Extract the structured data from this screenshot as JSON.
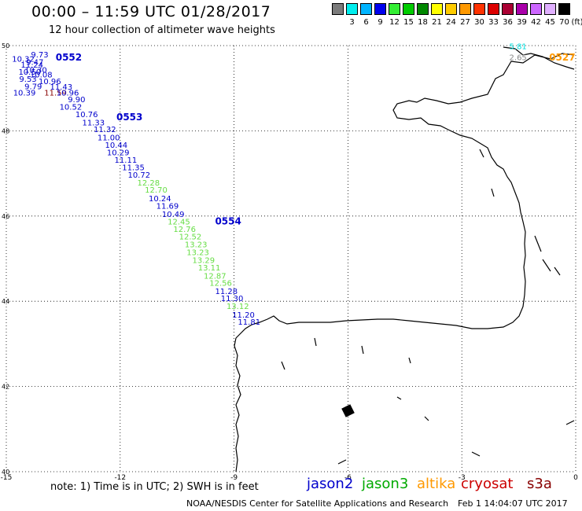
{
  "header": {
    "title": "00:00 – 11:59 UTC 01/28/2017",
    "subtitle": "12 hour collection of altimeter wave heights"
  },
  "color_scale": {
    "colors": [
      "#7b7b7b",
      "#00eeee",
      "#00b4ff",
      "#0000ee",
      "#33ee33",
      "#00cc00",
      "#008800",
      "#ffff00",
      "#ffcc00",
      "#ff9900",
      "#ff3300",
      "#dd0000",
      "#aa0033",
      "#aa00aa",
      "#cc66ff",
      "#e0b0ff",
      "#000000"
    ],
    "labels": [
      "",
      "3",
      "6",
      "9",
      "12",
      "15",
      "18",
      "21",
      "24",
      "27",
      "30",
      "33",
      "36",
      "39",
      "42",
      "45",
      "70"
    ],
    "unit": "(ft)"
  },
  "axes": {
    "lon_ticks": [
      -15,
      -12,
      -9,
      -6,
      -3,
      0
    ],
    "lon_labels": [
      "-15",
      "-12",
      "-9",
      "-6",
      "-3",
      "0"
    ],
    "lat_ticks": [
      50,
      48,
      46,
      44,
      42,
      40
    ],
    "lat_labels": [
      "50",
      "48",
      "46",
      "44",
      "42",
      "40"
    ],
    "lon_range": [
      -15,
      0
    ],
    "lat_range": [
      40,
      50
    ],
    "grid": true
  },
  "satellite_colors": {
    "jason2": "#0000cc",
    "jason3": "#00aa00",
    "altika": "#ff9900",
    "cryosat": "#cc0000",
    "s3a": "#880000",
    "lightgreen": "#66dd44",
    "cyan": "#00dddd",
    "gray": "#888888"
  },
  "pass_labels": [
    {
      "text": "0552",
      "lon": -13.7,
      "lat": 49.65,
      "sat": "jason2"
    },
    {
      "text": "0553",
      "lon": -12.1,
      "lat": 48.25,
      "sat": "jason2"
    },
    {
      "text": "0554",
      "lon": -9.5,
      "lat": 45.8,
      "sat": "jason2"
    },
    {
      "text": "0527",
      "lon": -0.7,
      "lat": 49.65,
      "sat": "altika"
    }
  ],
  "observations": [
    {
      "text": "9.73",
      "lon": -14.35,
      "lat": 49.72,
      "sat": "jason2"
    },
    {
      "text": "10.32",
      "lon": -14.85,
      "lat": 49.62,
      "sat": "jason2"
    },
    {
      "text": "9.47",
      "lon": -14.48,
      "lat": 49.55,
      "sat": "jason2"
    },
    {
      "text": "11.24",
      "lon": -14.62,
      "lat": 49.48,
      "sat": "jason2"
    },
    {
      "text": "10.30",
      "lon": -14.52,
      "lat": 49.36,
      "sat": "jason2"
    },
    {
      "text": "10.50",
      "lon": -14.68,
      "lat": 49.32,
      "sat": "jason2"
    },
    {
      "text": "10.08",
      "lon": -14.38,
      "lat": 49.25,
      "sat": "jason2"
    },
    {
      "text": "9.53",
      "lon": -14.66,
      "lat": 49.15,
      "sat": "jason2"
    },
    {
      "text": "10.96",
      "lon": -14.15,
      "lat": 49.1,
      "sat": "jason2"
    },
    {
      "text": "9.79",
      "lon": -14.52,
      "lat": 48.98,
      "sat": "jason2"
    },
    {
      "text": "11.43",
      "lon": -13.85,
      "lat": 48.97,
      "sat": "jason2"
    },
    {
      "text": "10.39",
      "lon": -14.82,
      "lat": 48.83,
      "sat": "jason2"
    },
    {
      "text": "11.59",
      "lon": -14.0,
      "lat": 48.83,
      "sat": "s3a"
    },
    {
      "text": "10.96",
      "lon": -13.68,
      "lat": 48.83,
      "sat": "jason2"
    },
    {
      "text": "9.90",
      "lon": -13.38,
      "lat": 48.67,
      "sat": "jason2"
    },
    {
      "text": "10.52",
      "lon": -13.6,
      "lat": 48.5,
      "sat": "jason2"
    },
    {
      "text": "10.76",
      "lon": -13.18,
      "lat": 48.32,
      "sat": "jason2"
    },
    {
      "text": "11.33",
      "lon": -13.0,
      "lat": 48.13,
      "sat": "jason2"
    },
    {
      "text": "11.32",
      "lon": -12.7,
      "lat": 47.97,
      "sat": "jason2"
    },
    {
      "text": "11.00",
      "lon": -12.6,
      "lat": 47.78,
      "sat": "jason2"
    },
    {
      "text": "10.44",
      "lon": -12.4,
      "lat": 47.6,
      "sat": "jason2"
    },
    {
      "text": "10.29",
      "lon": -12.35,
      "lat": 47.43,
      "sat": "jason2"
    },
    {
      "text": "11.11",
      "lon": -12.15,
      "lat": 47.25,
      "sat": "jason2"
    },
    {
      "text": "11.35",
      "lon": -11.95,
      "lat": 47.08,
      "sat": "jason2"
    },
    {
      "text": "10.72",
      "lon": -11.8,
      "lat": 46.9,
      "sat": "jason2"
    },
    {
      "text": "12.28",
      "lon": -11.55,
      "lat": 46.72,
      "sat": "lightgreen"
    },
    {
      "text": "12.70",
      "lon": -11.35,
      "lat": 46.55,
      "sat": "lightgreen"
    },
    {
      "text": "10.24",
      "lon": -11.25,
      "lat": 46.35,
      "sat": "jason2"
    },
    {
      "text": "11.69",
      "lon": -11.05,
      "lat": 46.17,
      "sat": "jason2"
    },
    {
      "text": "10.49",
      "lon": -10.9,
      "lat": 45.98,
      "sat": "jason2"
    },
    {
      "text": "12.45",
      "lon": -10.75,
      "lat": 45.8,
      "sat": "lightgreen"
    },
    {
      "text": "12.76",
      "lon": -10.6,
      "lat": 45.63,
      "sat": "lightgreen"
    },
    {
      "text": "12.52",
      "lon": -10.45,
      "lat": 45.45,
      "sat": "lightgreen"
    },
    {
      "text": "13.23",
      "lon": -10.3,
      "lat": 45.27,
      "sat": "lightgreen"
    },
    {
      "text": "13.23",
      "lon": -10.25,
      "lat": 45.08,
      "sat": "lightgreen"
    },
    {
      "text": "13.29",
      "lon": -10.1,
      "lat": 44.9,
      "sat": "lightgreen"
    },
    {
      "text": "13.11",
      "lon": -9.95,
      "lat": 44.72,
      "sat": "lightgreen"
    },
    {
      "text": "12.87",
      "lon": -9.8,
      "lat": 44.53,
      "sat": "lightgreen"
    },
    {
      "text": "12.56",
      "lon": -9.65,
      "lat": 44.36,
      "sat": "lightgreen"
    },
    {
      "text": "11.28",
      "lon": -9.5,
      "lat": 44.17,
      "sat": "jason2"
    },
    {
      "text": "11.30",
      "lon": -9.35,
      "lat": 44.0,
      "sat": "jason2"
    },
    {
      "text": "13.12",
      "lon": -9.2,
      "lat": 43.82,
      "sat": "lightgreen"
    },
    {
      "text": "11.20",
      "lon": -9.05,
      "lat": 43.62,
      "sat": "jason2"
    },
    {
      "text": "11.81",
      "lon": -8.9,
      "lat": 43.45,
      "sat": "jason2"
    },
    {
      "text": "5.81",
      "lon": -1.75,
      "lat": 49.92,
      "sat": "cyan"
    },
    {
      "text": "2.65",
      "lon": -1.75,
      "lat": 49.66,
      "sat": "gray"
    }
  ],
  "footer": {
    "note": "note:  1) Time is in UTC;  2) SWH is in feet",
    "legend": [
      {
        "name": "jason2",
        "sat": "jason2"
      },
      {
        "name": "jason3",
        "sat": "jason3"
      },
      {
        "name": "altika",
        "sat": "altika"
      },
      {
        "name": "cryosat",
        "sat": "cryosat"
      },
      {
        "name": "s3a",
        "sat": "s3a"
      }
    ],
    "credit": "NOAA/NESDIS Center for Satellite Applications and Research",
    "timestamp": "Feb  1 14:04:07 UTC 2017"
  }
}
